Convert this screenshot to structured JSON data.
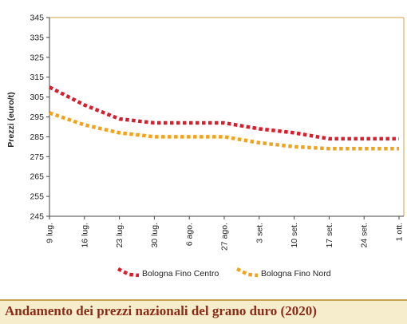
{
  "chart_data": {
    "type": "line",
    "title": "Andamento dei prezzi nazionali del grano duro (2020)",
    "xlabel": "",
    "ylabel": "Prezzi (euro/t)",
    "ylim": [
      245,
      345
    ],
    "yticks": [
      245,
      255,
      265,
      275,
      285,
      295,
      305,
      315,
      325,
      335,
      345
    ],
    "categories": [
      "9 lug.",
      "16 lug.",
      "23 lug.",
      "30 lug.",
      "6 ago.",
      "27 ago.",
      "3 set.",
      "10 set.",
      "17 set.",
      "24 set.",
      "1 ott."
    ],
    "grid": false,
    "legend_position": "bottom",
    "series": [
      {
        "name": "Bologna Fino Centro",
        "color": "#d81e2c",
        "values": [
          310,
          301,
          294,
          292,
          292,
          292,
          289,
          287,
          284,
          284,
          284
        ]
      },
      {
        "name": "Bologna Fino Nord",
        "color": "#f5a21b",
        "values": [
          297,
          291,
          287,
          285,
          285,
          285,
          282,
          280,
          279,
          279,
          279
        ]
      }
    ]
  }
}
